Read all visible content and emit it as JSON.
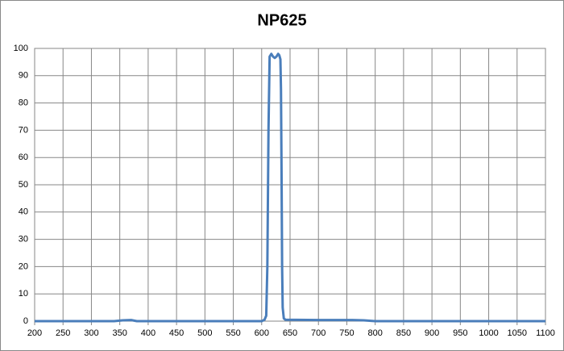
{
  "chart_data": {
    "type": "line",
    "title": "NP625",
    "series": [
      {
        "color": "#4a7ebb",
        "x": [
          200,
          300,
          340,
          355,
          370,
          380,
          450,
          550,
          600,
          605,
          608,
          610,
          612,
          614,
          617,
          620,
          623,
          626,
          629,
          631,
          633,
          634,
          635,
          636,
          637,
          639,
          642,
          700,
          760,
          780,
          800,
          900,
          1000,
          1100
        ],
        "values": [
          0,
          0,
          0,
          0.3,
          0.4,
          0,
          0,
          0,
          0,
          0.5,
          2,
          20,
          70,
          97,
          98,
          97,
          96.5,
          97,
          98,
          97.5,
          96,
          85,
          55,
          20,
          5,
          1,
          0.5,
          0.4,
          0.4,
          0.3,
          0,
          0,
          0,
          0
        ]
      }
    ],
    "xlim": [
      200,
      1100
    ],
    "xticks": [
      200,
      250,
      300,
      350,
      400,
      450,
      500,
      550,
      600,
      650,
      700,
      750,
      800,
      850,
      900,
      950,
      1000,
      1050,
      1100
    ],
    "ylim": [
      0,
      100
    ],
    "yticks": [
      0,
      10,
      20,
      30,
      40,
      50,
      60,
      70,
      80,
      90,
      100
    ],
    "grid": true
  }
}
